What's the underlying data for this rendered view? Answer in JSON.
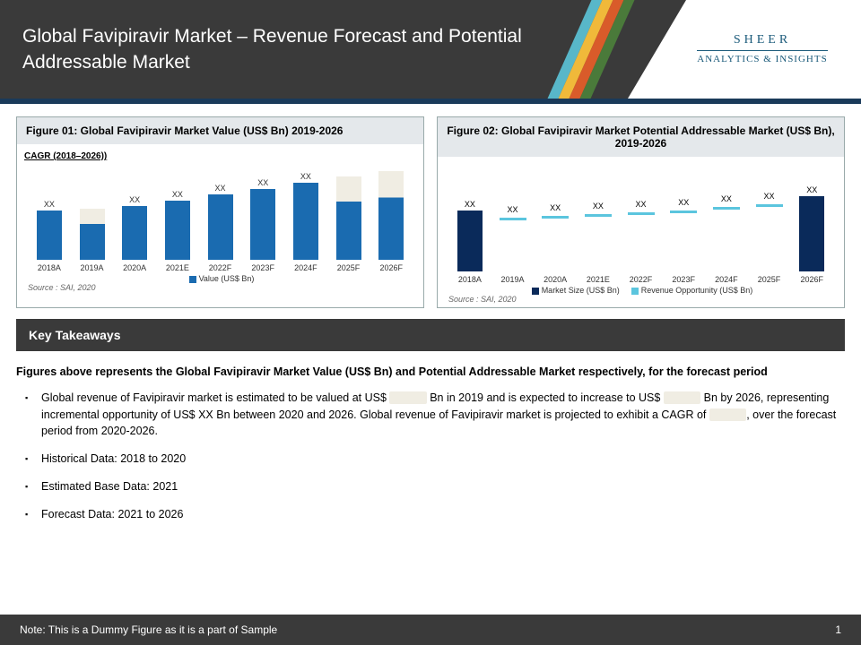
{
  "header": {
    "title": "Global Favipiravir Market  – Revenue Forecast and Potential Addressable Market",
    "stripe_colors": [
      "#58b7c9",
      "#f0b93a",
      "#d95b2a",
      "#4a7a3a"
    ],
    "accent_color": "#1a3a5a",
    "logo_line1": "SHEER",
    "logo_line2": "ANALYTICS & INSIGHTS"
  },
  "figure1": {
    "title": "Figure 01: Global Favipiravir Market  Value (US$ Bn) 2019-2026",
    "cagr_label": "CAGR (2018–2026))",
    "type": "bar",
    "categories": [
      "2018A",
      "2019A",
      "2020A",
      "2021E",
      "2022F",
      "2023F",
      "2024F",
      "2025F",
      "2026F"
    ],
    "values": [
      50,
      52,
      55,
      60,
      66,
      72,
      78,
      85,
      90
    ],
    "value_labels": [
      "XX",
      "",
      "XX",
      "XX",
      "XX",
      "XX",
      "XX",
      "",
      ""
    ],
    "bar_color": "#1a6bb0",
    "redact_color": "#f0ede3",
    "redacted_bars": [
      1,
      7,
      8
    ],
    "legend_label": "Value (US$ Bn)",
    "source": "Source : SAI, 2020",
    "ylim": [
      0,
      100
    ]
  },
  "figure2": {
    "title": "Figure 02: Global Favipiravir Market Potential Addressable Market (US$ Bn), 2019-2026",
    "type": "bar-with-marker",
    "categories": [
      "2018A",
      "2019A",
      "2020A",
      "2021E",
      "2022F",
      "2023F",
      "2024F",
      "2025F",
      "2026F"
    ],
    "market_values": [
      62,
      0,
      0,
      0,
      0,
      0,
      0,
      0,
      76
    ],
    "revenue_line_y": [
      0,
      56,
      58,
      60,
      62,
      64,
      67,
      70,
      0
    ],
    "value_labels": [
      "XX",
      "XX",
      "XX",
      "XX",
      "XX",
      "XX",
      "XX",
      "XX",
      "XX"
    ],
    "market_color": "#0a2a5a",
    "revenue_color": "#5bc5de",
    "legend1": "Market Size (US$ Bn)",
    "legend2": "Revenue Opportunity (US$ Bn)",
    "source": "Source : SAI, 2020",
    "ylim": [
      0,
      100
    ]
  },
  "takeaways": {
    "header": "Key Takeaways",
    "intro": "Figures above represents the Global Favipiravir Market Value (US$ Bn) and Potential Addressable Market respectively, for the forecast period",
    "items": [
      "Global revenue of Favipiravir market is estimated to be valued at US$ █████ Bn in 2019 and is expected to increase to US$ █████ Bn by 2026, representing incremental opportunity of US$ XX Bn between 2020 and 2026. Global revenue of Favipiravir market is projected to exhibit a CAGR of ████, over the forecast period from 2020-2026.",
      "Historical Data: 2018 to 2020",
      "Estimated Base Data: 2021",
      "Forecast Data: 2021 to 2026"
    ]
  },
  "footer": {
    "note": "Note: This is a Dummy Figure as it is a part of Sample",
    "page": "1"
  }
}
